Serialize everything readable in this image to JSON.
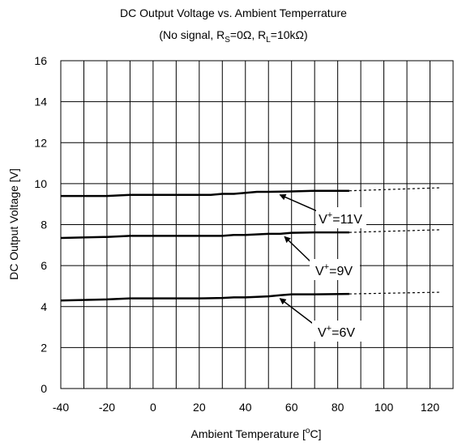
{
  "chart_data": {
    "type": "line",
    "title": "DC Output Voltage vs. Ambient Temperrature",
    "subtitle": {
      "prefix": "(No signal, R",
      "rs_sub": "S",
      "mid": "=0Ω, R",
      "rl_sub": "L",
      "suffix": "=10kΩ)"
    },
    "xlabel": {
      "main": "Ambient Temperature [",
      "sup": "o",
      "post": "C]"
    },
    "ylabel": "DC Output Voltage [V]",
    "xlim": [
      -40,
      130
    ],
    "ylim": [
      0,
      16
    ],
    "xticks": [
      "-40",
      "-20",
      "0",
      "20",
      "40",
      "60",
      "80",
      "100",
      "120"
    ],
    "yticks": [
      "0",
      "2",
      "4",
      "6",
      "8",
      "10",
      "12",
      "14",
      "16"
    ],
    "grid": true,
    "series": [
      {
        "name": "V+=11V",
        "label": {
          "pre": "V",
          "sup": "+",
          "post": "=11V"
        },
        "solid": [
          [
            -40,
            9.4
          ],
          [
            -20,
            9.4
          ],
          [
            -10,
            9.45
          ],
          [
            0,
            9.45
          ],
          [
            20,
            9.45
          ],
          [
            25,
            9.45
          ],
          [
            30,
            9.5
          ],
          [
            35,
            9.5
          ],
          [
            40,
            9.55
          ],
          [
            45,
            9.6
          ],
          [
            50,
            9.6
          ],
          [
            60,
            9.62
          ],
          [
            70,
            9.65
          ],
          [
            85,
            9.65
          ]
        ],
        "dashed": [
          [
            85,
            9.65
          ],
          [
            125,
            9.8
          ]
        ]
      },
      {
        "name": "V+=9V",
        "label": {
          "pre": "V",
          "sup": "+",
          "post": "=9V"
        },
        "solid": [
          [
            -40,
            7.35
          ],
          [
            -20,
            7.4
          ],
          [
            -10,
            7.45
          ],
          [
            0,
            7.45
          ],
          [
            20,
            7.45
          ],
          [
            30,
            7.45
          ],
          [
            35,
            7.5
          ],
          [
            40,
            7.5
          ],
          [
            50,
            7.55
          ],
          [
            55,
            7.55
          ],
          [
            60,
            7.6
          ],
          [
            70,
            7.62
          ],
          [
            85,
            7.62
          ]
        ],
        "dashed": [
          [
            85,
            7.62
          ],
          [
            125,
            7.75
          ]
        ]
      },
      {
        "name": "V+=6V",
        "label": {
          "pre": "V",
          "sup": "+",
          "post": "=6V"
        },
        "solid": [
          [
            -40,
            4.3
          ],
          [
            -20,
            4.35
          ],
          [
            -10,
            4.4
          ],
          [
            0,
            4.4
          ],
          [
            20,
            4.4
          ],
          [
            30,
            4.42
          ],
          [
            35,
            4.45
          ],
          [
            40,
            4.45
          ],
          [
            50,
            4.5
          ],
          [
            55,
            4.55
          ],
          [
            60,
            4.6
          ],
          [
            70,
            4.6
          ],
          [
            85,
            4.62
          ]
        ],
        "dashed": [
          [
            85,
            4.62
          ],
          [
            125,
            4.7
          ]
        ]
      }
    ]
  }
}
